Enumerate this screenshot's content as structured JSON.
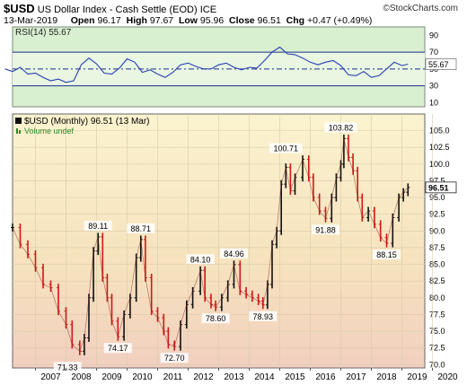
{
  "header": {
    "ticker": "$USD",
    "name": "US Dollar Index - Cash Settle (EOD) ICE",
    "copyright": "©StockCharts.com",
    "date": "13-Mar-2019",
    "open_label": "Open",
    "open": "96.17",
    "high_label": "High",
    "high": "97.67",
    "low_label": "Low",
    "low": "95.96",
    "close_label": "Close",
    "close": "96.51",
    "chg_label": "Chg",
    "chg": "+0.47 (+0.49%)"
  },
  "rsi_panel": {
    "label": "RSI(14) 55.67",
    "current_value": "55.67",
    "ylim": [
      5,
      100
    ],
    "ticks": [
      10,
      30,
      50,
      70,
      90
    ],
    "overbought": 70,
    "oversold": 30,
    "midline": 50,
    "bg_color": "#d8f0d0",
    "line_color": "#2a3fb0",
    "x": [
      2006.0,
      2006.25,
      2006.5,
      2006.75,
      2007.0,
      2007.25,
      2007.5,
      2007.75,
      2008.0,
      2008.25,
      2008.5,
      2008.75,
      2009.0,
      2009.25,
      2009.5,
      2009.75,
      2010.0,
      2010.25,
      2010.5,
      2010.75,
      2011.0,
      2011.25,
      2011.5,
      2011.75,
      2012.0,
      2012.25,
      2012.5,
      2012.75,
      2013.0,
      2013.25,
      2013.5,
      2013.75,
      2014.0,
      2014.25,
      2014.5,
      2014.75,
      2015.0,
      2015.25,
      2015.5,
      2015.75,
      2016.0,
      2016.25,
      2016.5,
      2016.75,
      2017.0,
      2017.25,
      2017.5,
      2017.75,
      2018.0,
      2018.25,
      2018.5,
      2018.75,
      2019.0,
      2019.2
    ],
    "values": [
      50,
      47,
      52,
      44,
      45,
      40,
      36,
      38,
      34,
      36,
      55,
      63,
      56,
      45,
      44,
      51,
      62,
      58,
      46,
      49,
      44,
      40,
      46,
      55,
      57,
      53,
      50,
      50,
      55,
      57,
      52,
      49,
      52,
      51,
      60,
      70,
      76,
      68,
      67,
      63,
      58,
      55,
      58,
      60,
      54,
      43,
      42,
      47,
      40,
      42,
      50,
      58,
      54,
      55.67
    ]
  },
  "chart_data": {
    "type": "line",
    "title": "$USD (Monthly) 96.51 (13 Mar)",
    "legend": [
      "$USD (Monthly) 96.51 (13 Mar)",
      "Volume undef"
    ],
    "legend_position": "top-left",
    "y_axis_side": "right",
    "ylim": [
      69.5,
      107.5
    ],
    "xlim": [
      2006.25,
      2019.75
    ],
    "yticks": [
      70.0,
      72.5,
      75.0,
      77.5,
      80.0,
      82.5,
      85.0,
      87.5,
      90.0,
      92.5,
      95.0,
      97.5,
      100.0,
      102.5,
      105.0
    ],
    "ytick_labels": [
      "70.0",
      "72.5",
      "75.0",
      "77.5",
      "80.0",
      "82.5",
      "85.0",
      "87.5",
      "90.0",
      "92.5",
      "95.0",
      "97.5",
      "100.0",
      "102.5",
      "105.0"
    ],
    "xticks": [
      2007,
      2008,
      2009,
      2010,
      2011,
      2012,
      2013,
      2014,
      2015,
      2016,
      2017,
      2018,
      2019,
      2020
    ],
    "xtick_labels": [
      "2007",
      "2008",
      "2009",
      "2010",
      "2011",
      "2012",
      "2013",
      "2014",
      "2015",
      "2016",
      "2017",
      "2018",
      "2019",
      "2020"
    ],
    "last_value_label": "96.51",
    "grid": true,
    "bg_gradient": [
      "#fbf3cf",
      "#f6e2bd",
      "#f2cfc0"
    ],
    "up_color": "#111111",
    "down_color": "#d01818",
    "x": [
      2006.25,
      2006.5,
      2006.75,
      2007.0,
      2007.25,
      2007.5,
      2007.75,
      2008.0,
      2008.2,
      2008.45,
      2008.6,
      2008.75,
      2008.9,
      2009.05,
      2009.2,
      2009.35,
      2009.5,
      2009.7,
      2009.9,
      2010.1,
      2010.3,
      2010.45,
      2010.6,
      2010.8,
      2011.0,
      2011.2,
      2011.35,
      2011.55,
      2011.75,
      2011.95,
      2012.15,
      2012.4,
      2012.55,
      2012.75,
      2012.9,
      2013.1,
      2013.3,
      2013.5,
      2013.7,
      2013.9,
      2014.1,
      2014.3,
      2014.45,
      2014.6,
      2014.75,
      2014.9,
      2015.05,
      2015.2,
      2015.35,
      2015.5,
      2015.75,
      2015.95,
      2016.1,
      2016.3,
      2016.5,
      2016.7,
      2016.85,
      2017.0,
      2017.1,
      2017.25,
      2017.4,
      2017.55,
      2017.7,
      2017.9,
      2018.1,
      2018.3,
      2018.5,
      2018.7,
      2018.9,
      2019.05,
      2019.2
    ],
    "values": [
      90.5,
      88,
      86.5,
      84.5,
      82,
      81.5,
      78,
      76,
      73,
      72,
      74,
      80,
      87,
      89.11,
      83,
      80,
      76.5,
      74.17,
      77.5,
      80,
      86,
      88.71,
      83,
      78,
      77,
      75,
      73,
      72.7,
      76,
      79,
      81,
      84.1,
      80,
      79,
      78.6,
      80,
      82,
      84.96,
      81,
      80.5,
      80,
      79.5,
      78.93,
      82,
      88,
      90,
      97,
      99.5,
      96,
      98,
      100.71,
      98,
      95,
      93,
      91.88,
      95,
      98,
      100,
      103.82,
      101,
      99,
      95,
      92,
      93,
      91,
      89,
      88.15,
      92,
      95,
      95.8,
      96.51
    ],
    "annotations": [
      {
        "label": "71.33",
        "x": 2008.05,
        "y": 71.33,
        "pos": "below"
      },
      {
        "label": "89.11",
        "x": 2009.05,
        "y": 89.11,
        "pos": "above"
      },
      {
        "label": "74.17",
        "x": 2009.7,
        "y": 74.17,
        "pos": "below"
      },
      {
        "label": "88.71",
        "x": 2010.45,
        "y": 88.71,
        "pos": "above"
      },
      {
        "label": "72.70",
        "x": 2011.55,
        "y": 72.7,
        "pos": "below"
      },
      {
        "label": "84.10",
        "x": 2012.4,
        "y": 84.1,
        "pos": "above"
      },
      {
        "label": "78.60",
        "x": 2012.9,
        "y": 78.6,
        "pos": "below"
      },
      {
        "label": "84.96",
        "x": 2013.5,
        "y": 84.96,
        "pos": "above"
      },
      {
        "label": "78.93",
        "x": 2014.45,
        "y": 78.93,
        "pos": "below"
      },
      {
        "label": "100.71",
        "x": 2015.2,
        "y": 100.71,
        "pos": "above"
      },
      {
        "label": "91.88",
        "x": 2016.5,
        "y": 91.88,
        "pos": "below"
      },
      {
        "label": "103.82",
        "x": 2017.0,
        "y": 103.82,
        "pos": "above"
      },
      {
        "label": "88.15",
        "x": 2018.5,
        "y": 88.15,
        "pos": "below"
      }
    ]
  }
}
